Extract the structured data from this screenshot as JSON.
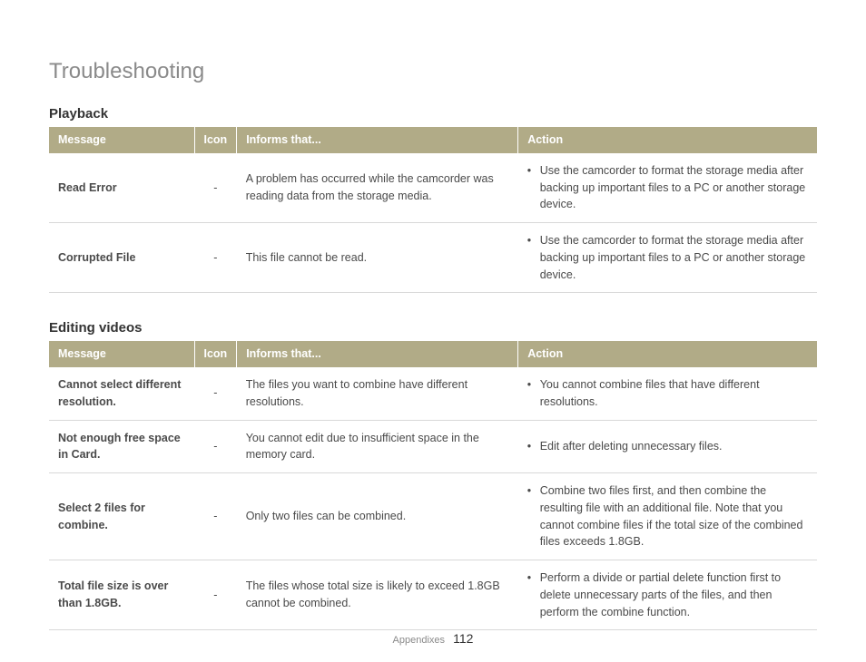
{
  "page_title": "Troubleshooting",
  "footer": {
    "section": "Appendixes",
    "page": "112"
  },
  "table_headers": {
    "message": "Message",
    "icon": "Icon",
    "informs": "Informs that...",
    "action": "Action"
  },
  "sections": [
    {
      "title": "Playback",
      "rows": [
        {
          "message": "Read Error",
          "icon": "-",
          "informs": "A problem has occurred while the camcorder was reading data from the storage media.",
          "actions": [
            "Use the camcorder to format the storage media after backing up important files to a PC or another storage device."
          ]
        },
        {
          "message": "Corrupted File",
          "icon": "-",
          "informs": "This file cannot be read.",
          "actions": [
            "Use the camcorder to format the storage media after backing up important files to a PC or another storage device."
          ]
        }
      ]
    },
    {
      "title": "Editing videos",
      "rows": [
        {
          "message": "Cannot select different resolution.",
          "icon": "-",
          "informs": "The files you want to combine have different resolutions.",
          "actions": [
            "You cannot combine files that have different resolutions."
          ]
        },
        {
          "message": "Not enough free space in Card.",
          "icon": "-",
          "informs": "You cannot edit due to insufficient space in the memory card.",
          "actions": [
            "Edit after deleting unnecessary files."
          ]
        },
        {
          "message": "Select 2 files for combine.",
          "icon": "-",
          "informs": "Only two files can be combined.",
          "actions": [
            "Combine two files first, and then combine the resulting file with an additional file. Note that you cannot combine files if the total size of the combined files exceeds 1.8GB."
          ]
        },
        {
          "message": "Total file size is over than 1.8GB.",
          "icon": "-",
          "informs": "The files whose total size is likely to exceed 1.8GB cannot be combined.",
          "actions": [
            "Perform a divide or partial delete function first to delete unnecessary parts of the files, and then perform the combine function."
          ]
        }
      ]
    }
  ]
}
